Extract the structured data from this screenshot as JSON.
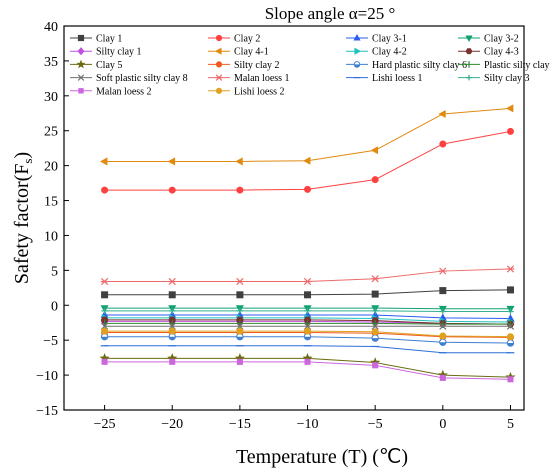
{
  "chart_data": {
    "type": "line",
    "title": "Slope angle α=25 °",
    "xlabel": "Temperature (T) (℃)",
    "ylabel": "Safety factor(F",
    "ylabel_sub": "s",
    "ylabel_close": ")",
    "x": [
      -25,
      -20,
      -15,
      -10,
      -5,
      0,
      5
    ],
    "xlim": [
      -28,
      6
    ],
    "ylim": [
      -15,
      40
    ],
    "xticks": [
      "−25",
      "−20",
      "−15",
      "−10",
      "−5",
      "0",
      "5"
    ],
    "yticks": [
      "−15",
      "−10",
      "−5",
      "0",
      "5",
      "10",
      "15",
      "20",
      "25",
      "30",
      "35",
      "40"
    ],
    "grid": false,
    "legend_position": "top",
    "series": [
      {
        "name": "Clay 1",
        "color": "#404040",
        "marker": "square",
        "values": [
          1.5,
          1.5,
          1.5,
          1.5,
          1.6,
          2.1,
          2.2
        ]
      },
      {
        "name": "Clay 2",
        "color": "#ff4040",
        "marker": "circle",
        "values": [
          16.5,
          16.5,
          16.5,
          16.6,
          18.0,
          23.1,
          24.9
        ]
      },
      {
        "name": "Clay 3-1",
        "color": "#2a5cf0",
        "marker": "triangle-up",
        "values": [
          -1.4,
          -1.4,
          -1.4,
          -1.4,
          -1.4,
          -1.8,
          -1.9
        ]
      },
      {
        "name": "Clay 3-2",
        "color": "#10a070",
        "marker": "triangle-down",
        "values": [
          -0.4,
          -0.4,
          -0.4,
          -0.4,
          -0.4,
          -0.5,
          -0.5
        ]
      },
      {
        "name": "Silty clay 1",
        "color": "#c050e0",
        "marker": "diamond",
        "values": [
          -2.3,
          -2.3,
          -2.3,
          -2.3,
          -2.4,
          -2.6,
          -2.7
        ]
      },
      {
        "name": "Clay 4-1",
        "color": "#e08a10",
        "marker": "triangle-left",
        "values": [
          20.6,
          20.6,
          20.6,
          20.7,
          22.2,
          27.4,
          28.2
        ]
      },
      {
        "name": "Clay 4-2",
        "color": "#20c0c0",
        "marker": "triangle-right",
        "values": [
          -1.8,
          -1.8,
          -1.8,
          -1.8,
          -1.9,
          -2.3,
          -2.4
        ]
      },
      {
        "name": "Clay 4-3",
        "color": "#7a3030",
        "marker": "hexagon",
        "values": [
          -2.1,
          -2.1,
          -2.1,
          -2.1,
          -2.2,
          -2.6,
          -2.7
        ]
      },
      {
        "name": "Clay 5",
        "color": "#6b6b10",
        "marker": "star",
        "values": [
          -7.6,
          -7.6,
          -7.6,
          -7.6,
          -8.2,
          -10.0,
          -10.3
        ]
      },
      {
        "name": "Silty clay 2",
        "color": "#f05a20",
        "marker": "circle",
        "values": [
          -3.9,
          -3.9,
          -3.9,
          -3.9,
          -4.0,
          -4.5,
          -4.6
        ]
      },
      {
        "name": "Hard plastic silty clay 6",
        "color": "#3f7fd0",
        "marker": "half-circle",
        "values": [
          -4.5,
          -4.5,
          -4.5,
          -4.5,
          -4.7,
          -5.3,
          -5.4
        ]
      },
      {
        "name": "Plastic silty clay 7",
        "color": "#2c8a2c",
        "marker": "vline",
        "values": [
          -2.6,
          -2.6,
          -2.6,
          -2.6,
          -2.6,
          -2.7,
          -2.7
        ]
      },
      {
        "name": "Soft plastic silty clay 8",
        "color": "#707070",
        "marker": "x",
        "values": [
          -3.0,
          -3.0,
          -3.0,
          -3.0,
          -3.0,
          -3.0,
          -3.0
        ]
      },
      {
        "name": "Malan loess 1",
        "color": "#ee6a6a",
        "marker": "asterisk",
        "values": [
          3.4,
          3.4,
          3.4,
          3.4,
          3.8,
          4.9,
          5.2
        ]
      },
      {
        "name": "Lishi loess 1",
        "color": "#2f6fd8",
        "marker": "hline",
        "values": [
          -5.8,
          -5.8,
          -5.8,
          -5.8,
          -5.9,
          -6.8,
          -6.8
        ]
      },
      {
        "name": "Silty clay 3",
        "color": "#30b090",
        "marker": "plus",
        "values": [
          -0.8,
          -0.8,
          -0.8,
          -0.8,
          -0.8,
          -0.9,
          -0.9
        ]
      },
      {
        "name": "Malan loess 2",
        "color": "#cc66dd",
        "marker": "square-small",
        "values": [
          -8.1,
          -8.1,
          -8.1,
          -8.1,
          -8.6,
          -10.4,
          -10.6
        ]
      },
      {
        "name": "Lishi loess 2",
        "color": "#e0a020",
        "marker": "circle",
        "values": [
          -3.7,
          -3.7,
          -3.7,
          -3.7,
          -3.8,
          -4.4,
          -4.5
        ]
      }
    ]
  }
}
